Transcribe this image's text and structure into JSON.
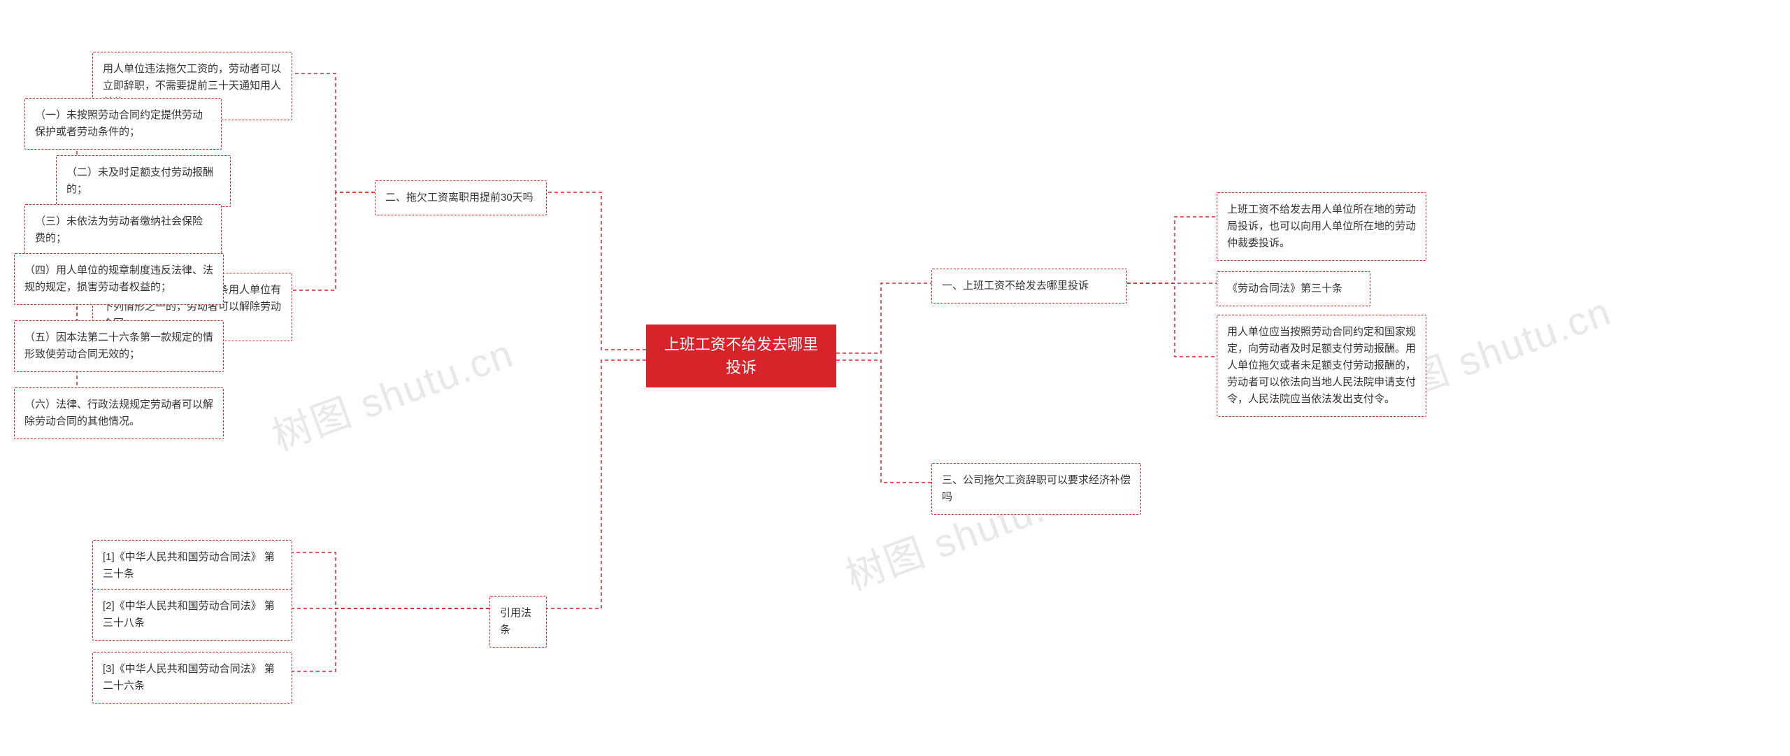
{
  "colors": {
    "accent": "#d8232a",
    "text": "#333333",
    "background": "#ffffff",
    "watermark": "#e8e8e8"
  },
  "watermarks": [
    "树图 shutu.cn",
    "树图 shutu.cn",
    "树图 shutu.cn"
  ],
  "center": {
    "title": "上班工资不给发去哪里投诉"
  },
  "right": {
    "section1": {
      "title": "一、上班工资不给发去哪里投诉",
      "items": [
        "上班工资不给发去用人单位所在地的劳动局投诉，也可以向用人单位所在地的劳动仲裁委投诉。",
        "《劳动合同法》第三十条",
        "用人单位应当按照劳动合同约定和国家规定，向劳动者及时足额支付劳动报酬。用人单位拖欠或者未足额支付劳动报酬的，劳动者可以依法向当地人民法院申请支付令，人民法院应当依法发出支付令。"
      ]
    },
    "section3": {
      "title": "三、公司拖欠工资辞职可以要求经济补偿吗"
    }
  },
  "left": {
    "section2": {
      "title": "二、拖欠工资离职用提前30天吗",
      "item1": "用人单位违法拖欠工资的，劳动者可以立即辞职，不需要提前三十天通知用人单位。",
      "item2": "《劳动合同法》第三十八条用人单位有下列情形之一的，劳动者可以解除劳动合同：",
      "subitems": [
        "（一）未按照劳动合同约定提供劳动保护或者劳动条件的；",
        "（二）未及时足额支付劳动报酬的；",
        "（三）未依法为劳动者缴纳社会保险费的；",
        "（四）用人单位的规章制度违反法律、法规的规定，损害劳动者权益的；",
        "（五）因本法第二十六条第一款规定的情形致使劳动合同无效的；",
        "（六）法律、行政法规规定劳动者可以解除劳动合同的其他情况。"
      ]
    },
    "citations": {
      "title": "引用法条",
      "items": [
        "[1]《中华人民共和国劳动合同法》 第三十条",
        "[2]《中华人民共和国劳动合同法》 第三十八条",
        "[3]《中华人民共和国劳动合同法》 第二十六条"
      ]
    }
  },
  "mindmap_style": {
    "type": "mindmap",
    "connector_style": "dashed",
    "connector_color": "#d8232a",
    "node_border_style": "dashed",
    "node_border_color": "#d8232a",
    "node_border_width": 1.5,
    "center_fill": "#d8232a",
    "center_text_color": "#ffffff",
    "font_family": "Microsoft YaHei",
    "base_font_size": 15,
    "center_font_size": 22
  }
}
